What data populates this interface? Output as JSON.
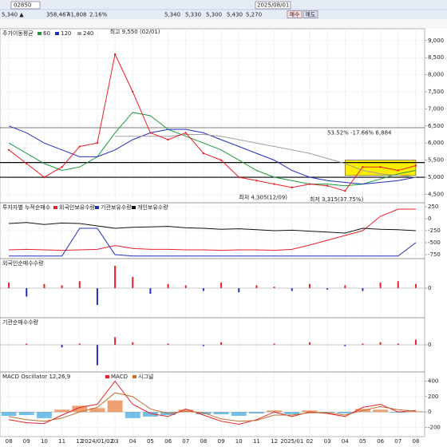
{
  "toolbar": {
    "code": "02850",
    "date": "2025/08/01",
    "quotes": [
      "5,340 ▲",
      "358,467",
      "41,808",
      "2.16%",
      "5,340",
      "5,330",
      "5,300",
      "5,430",
      "5,270"
    ],
    "buttons": [
      "매수",
      "매도"
    ]
  },
  "chart_data": [
    {
      "type": "line",
      "title": "주가이동평균",
      "annotations": [
        "최고 9,550 (02/01)",
        "53.52% -17.66% 6,884",
        "최저 4,305(12/09)",
        "최저 3,315(37.75%)"
      ],
      "close": [
        5800,
        5400,
        5000,
        5300,
        5900,
        6000,
        8600,
        7500,
        6300,
        6100,
        6300,
        5700,
        5500,
        5000,
        4900,
        4800,
        4700,
        4800,
        4750,
        4600,
        5300,
        5300,
        5200,
        5340
      ],
      "close_color": "#e8202a",
      "series": [
        {
          "name": "60",
          "color": "#1a9a3a",
          "values": [
            6000,
            5700,
            5400,
            5200,
            5300,
            5600,
            6300,
            6900,
            6800,
            6400,
            6200,
            6000,
            5800,
            5500,
            5200,
            5000,
            4900,
            4800,
            4800,
            4750,
            4800,
            4950,
            5100,
            5200
          ]
        },
        {
          "name": "120",
          "color": "#2030c0",
          "values": [
            6500,
            6300,
            6000,
            5800,
            5600,
            5600,
            5800,
            6100,
            6300,
            6400,
            6400,
            6300,
            6100,
            5900,
            5700,
            5500,
            5200,
            5000,
            4900,
            4850,
            4800,
            4850,
            4900,
            5000
          ]
        },
        {
          "name": "240",
          "color": "#a0a0a0",
          "values": [
            null,
            null,
            null,
            null,
            null,
            null,
            6200,
            6200,
            6200,
            6200,
            6250,
            6250,
            6200,
            6100,
            6000,
            5900,
            5800,
            5700,
            5550,
            5400,
            5200,
            5100,
            5050,
            5000
          ]
        }
      ],
      "hlines": [
        6450,
        5430,
        5000
      ],
      "highlight": [
        5050,
        5500
      ],
      "highlight_color": "#ffee00",
      "ylim": [
        4300,
        9300
      ],
      "yticks": [
        {
          "value": 4500,
          "label": "4,500"
        },
        {
          "value": 5000,
          "label": "5,000"
        },
        {
          "value": 5500,
          "label": "5,500"
        },
        {
          "value": 6000,
          "label": "6,000"
        },
        {
          "value": 6500,
          "label": "6,500"
        },
        {
          "value": 7000,
          "label": "7,000"
        },
        {
          "value": 7500,
          "label": "7,500"
        },
        {
          "value": 8000,
          "label": "8,000"
        },
        {
          "value": 8500,
          "label": "8,500"
        },
        {
          "value": 9000,
          "label": "9,000"
        }
      ]
    },
    {
      "type": "line",
      "title": "투자자별 누적순매수",
      "series": [
        {
          "name": "외국인보유수량",
          "color": "#e8202a",
          "values": [
            -650,
            -640,
            -650,
            -660,
            -650,
            -640,
            -560,
            -620,
            -640,
            -640,
            -650,
            -650,
            -660,
            -650,
            -650,
            -660,
            -640,
            -550,
            -450,
            -350,
            -250,
            50,
            200,
            200
          ]
        },
        {
          "name": "기관보유수량",
          "color": "#2030c0",
          "values": [
            -780,
            -780,
            -780,
            -780,
            -200,
            -200,
            -750,
            -780,
            -780,
            -780,
            -780,
            -780,
            -780,
            -780,
            -780,
            -780,
            -780,
            -780,
            -780,
            -780,
            -780,
            -780,
            -780,
            -500
          ]
        },
        {
          "name": "개인보유수량",
          "color": "#111111",
          "values": [
            -100,
            -80,
            -120,
            -90,
            -100,
            -150,
            -200,
            -180,
            -170,
            -160,
            -190,
            -200,
            -220,
            -210,
            -230,
            -250,
            -240,
            -260,
            -280,
            -300,
            -200,
            -220,
            -230,
            -250
          ]
        }
      ],
      "ylim": [
        -800,
        300
      ],
      "yticks": [
        250,
        0,
        -250,
        -500,
        -750
      ]
    },
    {
      "type": "bar",
      "title": "외국인순매수수량",
      "values": [
        20,
        -30,
        15,
        10,
        25,
        -60,
        80,
        40,
        -20,
        15,
        10,
        -10,
        20,
        -15,
        10,
        5,
        -10,
        15,
        -5,
        10,
        -10,
        20,
        25,
        15
      ],
      "up_color": "#e8202a",
      "down_color": "#2030c0",
      "ylim": [
        -100,
        100
      ],
      "yticks": [
        0
      ]
    },
    {
      "type": "bar",
      "title": "기관순매수수량",
      "values": [
        0,
        5,
        0,
        -10,
        5,
        -80,
        30,
        10,
        0,
        5,
        0,
        -5,
        10,
        0,
        0,
        5,
        0,
        10,
        0,
        -5,
        5,
        10,
        5,
        20
      ],
      "up_color": "#e8202a",
      "down_color": "#2030c0",
      "ylim": [
        -100,
        100
      ],
      "yticks": [
        0
      ]
    },
    {
      "type": "line",
      "title": "MACD Oscillator 12,26,9",
      "values": [
        -50,
        -40,
        -80,
        30,
        80,
        50,
        150,
        -80,
        -60,
        -40,
        30,
        -30,
        -30,
        -50,
        -20,
        20,
        -30,
        20,
        -10,
        -20,
        40,
        30,
        -10,
        10
      ],
      "up_color": "#f0a070",
      "down_color": "#70c0e8",
      "series": [
        {
          "name": "MACD",
          "color": "#e8202a",
          "values": [
            -100,
            -140,
            -150,
            -40,
            60,
            100,
            400,
            100,
            -20,
            -60,
            40,
            -40,
            -120,
            -160,
            -100,
            0,
            -60,
            0,
            -20,
            -60,
            60,
            100,
            0,
            20
          ]
        },
        {
          "name": "시그널",
          "color": "#c07030",
          "values": [
            -60,
            -100,
            -120,
            -80,
            0,
            60,
            250,
            200,
            40,
            -20,
            10,
            -10,
            -90,
            -120,
            -110,
            -40,
            -40,
            -10,
            -10,
            -40,
            20,
            70,
            30,
            10
          ]
        }
      ],
      "ylim": [
        -300,
        500
      ],
      "yticks": [
        400,
        200,
        0,
        -200
      ],
      "categories": [
        "08",
        "09",
        "10",
        "11",
        "12",
        "2024/01/02",
        "03",
        "04",
        "05",
        "06",
        "07",
        "08",
        "09",
        "10",
        "11",
        "12",
        "2025/01",
        "02",
        "03",
        "04",
        "05",
        "06",
        "07",
        "08"
      ]
    }
  ]
}
